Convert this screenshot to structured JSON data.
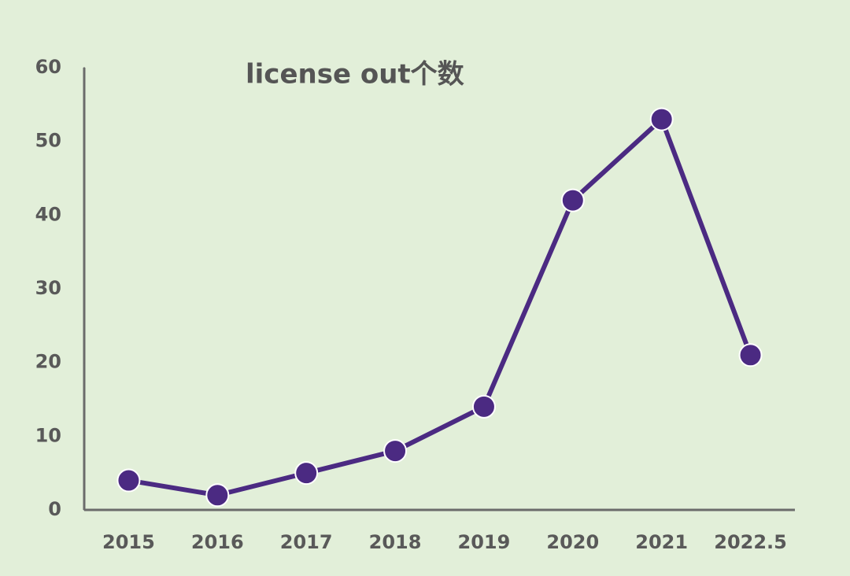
{
  "chart_data": {
    "type": "line",
    "title": "license out个数",
    "categories": [
      "2015",
      "2016",
      "2017",
      "2018",
      "2019",
      "2020",
      "2021",
      "2022.5"
    ],
    "values": [
      4,
      2,
      5,
      8,
      14,
      42,
      53,
      21
    ],
    "color": "#4b2a82",
    "ylim": [
      0,
      60
    ],
    "yticks": [
      0,
      10,
      20,
      30,
      40,
      50,
      60
    ],
    "grid": false
  }
}
